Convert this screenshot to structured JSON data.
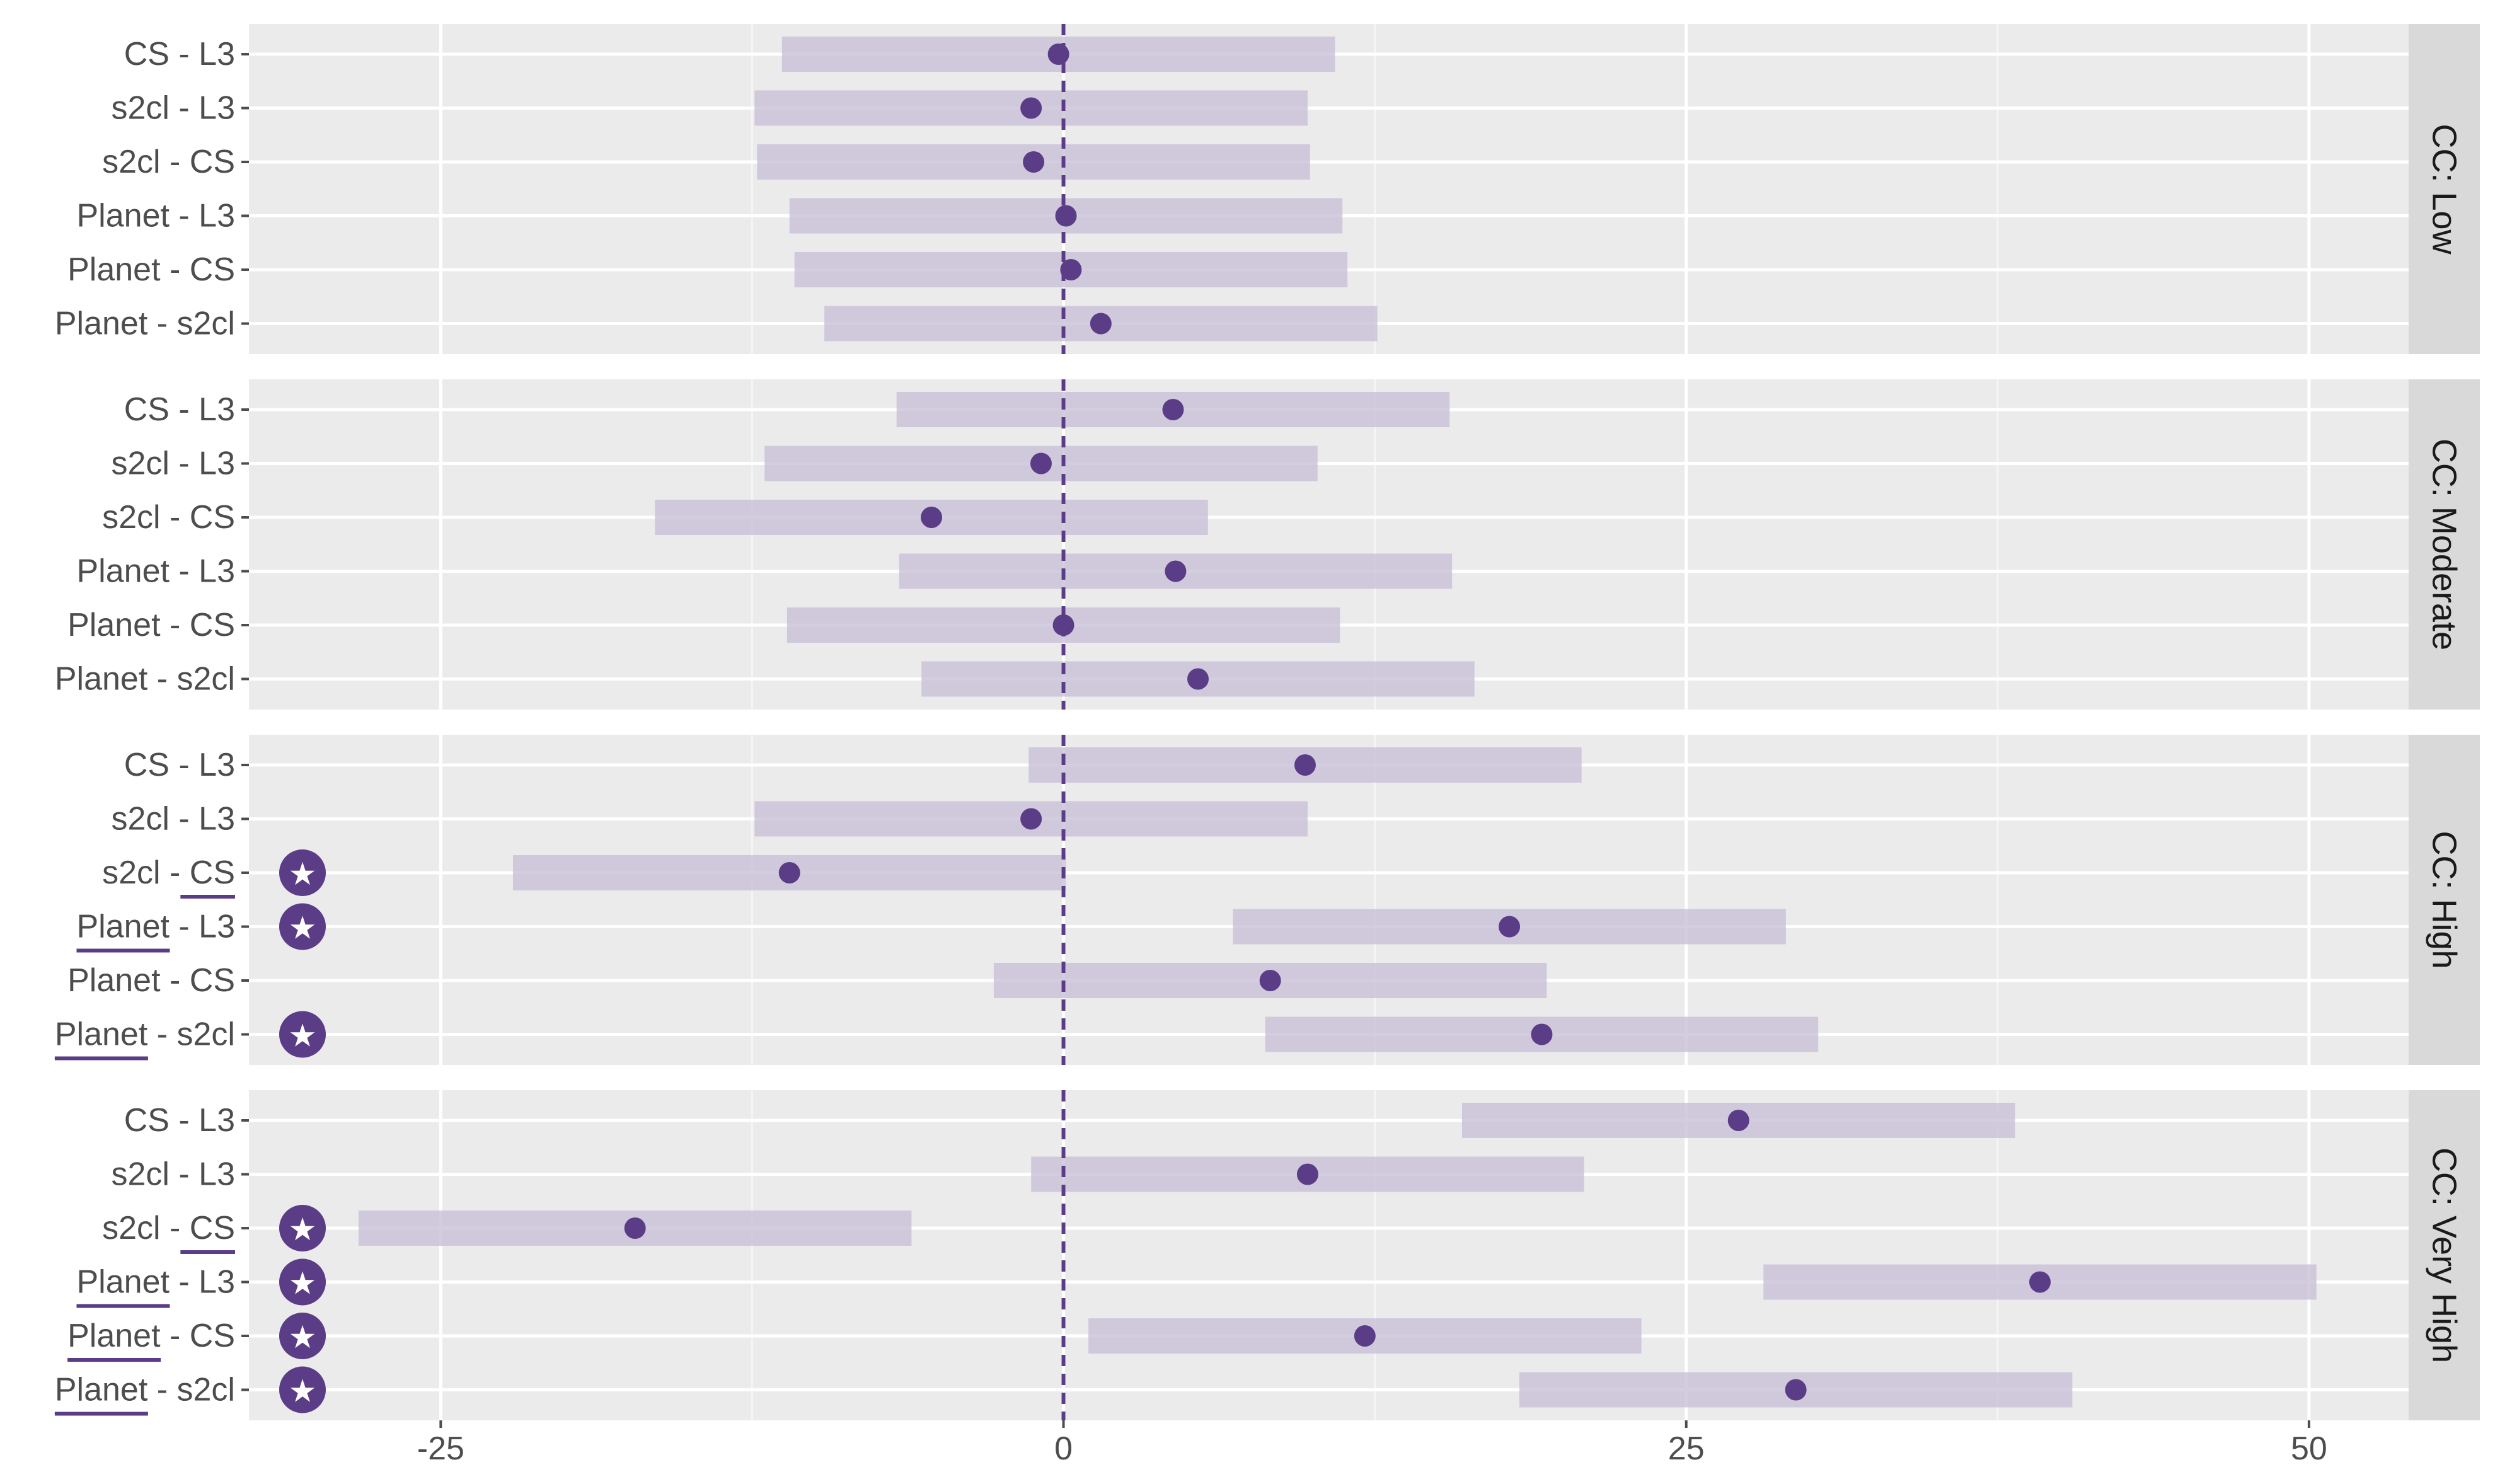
{
  "chart_data": {
    "type": "interval",
    "x_ticks": [
      -25,
      0,
      25,
      50
    ],
    "x_tick_labels": [
      "-25",
      "0",
      "25",
      "50"
    ],
    "xlim": [
      -32.7,
      54.0
    ],
    "reference_line_x": 0,
    "grid": true,
    "colors": {
      "panel_bg": "#ebebeb",
      "grid_major": "#ffffff",
      "strip_bg": "#d9d9d9",
      "interval": "#c9c0d8",
      "point": "#5a3d86",
      "reference_line": "#5a3d86",
      "star_marker": "#5a3d86",
      "underline": "#5a3d86",
      "axis_text": "#4d4d4d"
    },
    "facets": [
      {
        "strip_label": "CC: Low",
        "rows": [
          {
            "label": "CS - L3",
            "estimate": -0.2,
            "lower": -11.3,
            "upper": 10.9,
            "significant": false,
            "underline": null
          },
          {
            "label": "s2cl - L3",
            "estimate": -1.3,
            "lower": -12.4,
            "upper": 9.8,
            "significant": false,
            "underline": null
          },
          {
            "label": "s2cl - CS",
            "estimate": -1.2,
            "lower": -12.3,
            "upper": 9.9,
            "significant": false,
            "underline": null
          },
          {
            "label": "Planet - L3",
            "estimate": 0.1,
            "lower": -11.0,
            "upper": 11.2,
            "significant": false,
            "underline": null
          },
          {
            "label": "Planet - CS",
            "estimate": 0.3,
            "lower": -10.8,
            "upper": 11.4,
            "significant": false,
            "underline": null
          },
          {
            "label": "Planet - s2cl",
            "estimate": 1.5,
            "lower": -9.6,
            "upper": 12.6,
            "significant": false,
            "underline": null
          }
        ]
      },
      {
        "strip_label": "CC: Moderate",
        "rows": [
          {
            "label": "CS - L3",
            "estimate": 4.4,
            "lower": -6.7,
            "upper": 15.5,
            "significant": false,
            "underline": null
          },
          {
            "label": "s2cl - L3",
            "estimate": -0.9,
            "lower": -12.0,
            "upper": 10.2,
            "significant": false,
            "underline": null
          },
          {
            "label": "s2cl - CS",
            "estimate": -5.3,
            "lower": -16.4,
            "upper": 5.8,
            "significant": false,
            "underline": null
          },
          {
            "label": "Planet - L3",
            "estimate": 4.5,
            "lower": -6.6,
            "upper": 15.6,
            "significant": false,
            "underline": null
          },
          {
            "label": "Planet - CS",
            "estimate": 0.0,
            "lower": -11.1,
            "upper": 11.1,
            "significant": false,
            "underline": null
          },
          {
            "label": "Planet - s2cl",
            "estimate": 5.4,
            "lower": -5.7,
            "upper": 16.5,
            "significant": false,
            "underline": null
          }
        ]
      },
      {
        "strip_label": "CC: High",
        "rows": [
          {
            "label": "CS - L3",
            "estimate": 9.7,
            "lower": -1.4,
            "upper": 20.8,
            "significant": false,
            "underline": null
          },
          {
            "label": "s2cl - L3",
            "estimate": -1.3,
            "lower": -12.4,
            "upper": 9.8,
            "significant": false,
            "underline": null
          },
          {
            "label": "s2cl - CS",
            "estimate": -11.0,
            "lower": -22.1,
            "upper": 0.1,
            "significant": true,
            "underline": "right"
          },
          {
            "label": "Planet - L3",
            "estimate": 17.9,
            "lower": 6.8,
            "upper": 29.0,
            "significant": true,
            "underline": "left"
          },
          {
            "label": "Planet - CS",
            "estimate": 8.3,
            "lower": -2.8,
            "upper": 19.4,
            "significant": false,
            "underline": null
          },
          {
            "label": "Planet - s2cl",
            "estimate": 19.2,
            "lower": 8.1,
            "upper": 30.3,
            "significant": true,
            "underline": "left"
          }
        ]
      },
      {
        "strip_label": "CC: Very High",
        "rows": [
          {
            "label": "CS - L3",
            "estimate": 27.1,
            "lower": 16.0,
            "upper": 38.2,
            "significant": false,
            "underline": null
          },
          {
            "label": "s2cl - L3",
            "estimate": 9.8,
            "lower": -1.3,
            "upper": 20.9,
            "significant": false,
            "underline": null
          },
          {
            "label": "s2cl - CS",
            "estimate": -17.2,
            "lower": -28.3,
            "upper": -6.1,
            "significant": true,
            "underline": "right"
          },
          {
            "label": "Planet - L3",
            "estimate": 39.2,
            "lower": 28.1,
            "upper": 50.3,
            "significant": true,
            "underline": "left"
          },
          {
            "label": "Planet - CS",
            "estimate": 12.1,
            "lower": 1.0,
            "upper": 23.2,
            "significant": true,
            "underline": "left"
          },
          {
            "label": "Planet - s2cl",
            "estimate": 29.4,
            "lower": 18.3,
            "upper": 40.5,
            "significant": true,
            "underline": "left"
          }
        ]
      }
    ]
  }
}
